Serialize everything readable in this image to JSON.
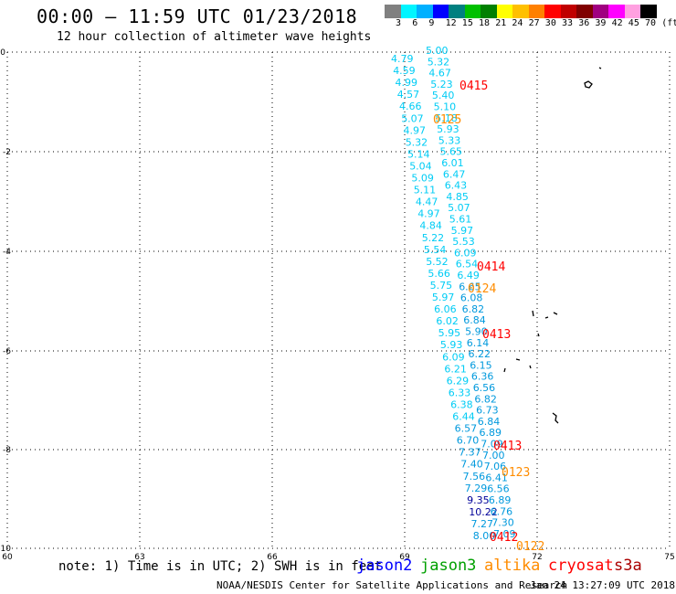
{
  "header": {
    "title": "00:00 – 11:59 UTC 01/23/2018",
    "subtitle": "12 hour collection of altimeter wave heights"
  },
  "colorbar": {
    "colors": [
      "#808080",
      "#00f5ff",
      "#00b0ff",
      "#0000ff",
      "#008080",
      "#00c000",
      "#008000",
      "#ffff00",
      "#ffc000",
      "#ff8000",
      "#ff0000",
      "#c00000",
      "#800000",
      "#a00080",
      "#ff00ff",
      "#ffa0e0",
      "#000000"
    ],
    "labels": [
      "3",
      "6",
      "9",
      "12",
      "15",
      "18",
      "21",
      "24",
      "27",
      "30",
      "33",
      "36",
      "39",
      "42",
      "45",
      "70",
      "(ft)"
    ]
  },
  "axes": {
    "x_ticks": [
      "60",
      "63",
      "66",
      "69",
      "72",
      "75"
    ],
    "y_ticks": [
      "0",
      "-2",
      "-4",
      "-6",
      "-8",
      "-10"
    ]
  },
  "track": {
    "color_light": "#00ccf5",
    "color_mid": "#0099dd",
    "color_dark": "#000099",
    "left": [
      "4.79",
      "4.59",
      "4.99",
      "4.57",
      "4.66",
      "5.07",
      "4.97",
      "5.32",
      "5.14",
      "5.04",
      "5.09",
      "5.11",
      "4.47",
      "4.97",
      "4.84",
      "5.22",
      "5.54",
      "5.52",
      "5.66",
      "5.75",
      "5.97",
      "6.06",
      "6.02",
      "5.95",
      "5.93",
      "6.09",
      "6.21",
      "6.29",
      "6.33",
      "6.38",
      "6.44",
      "6.57",
      "6.70",
      "7.37",
      "7.40",
      "7.56",
      "7.29",
      "9.35",
      "10.22",
      "7.27",
      "8.00"
    ],
    "right": [
      "5.00",
      "5.32",
      "4.67",
      "5.23",
      "5.40",
      "5.10",
      "5.18",
      "5.93",
      "5.33",
      "5.65",
      "6.01",
      "6.47",
      "6.43",
      "4.85",
      "5.07",
      "5.61",
      "5.97",
      "5.53",
      "6.09",
      "6.54",
      "6.49",
      "6.65",
      "6.08",
      "6.82",
      "6.84",
      "5.90",
      "6.14",
      "6.22",
      "6.15",
      "6.36",
      "6.56",
      "6.82",
      "6.73",
      "6.84",
      "6.89",
      "7.09",
      "7.00",
      "7.06",
      "6.41",
      "6.56",
      "6.89",
      "6.76",
      "7.30",
      "7.09"
    ]
  },
  "time_labels": [
    {
      "text": "0415",
      "color": "#ff0000"
    },
    {
      "text": "0125",
      "color": "#ff8c00"
    },
    {
      "text": "0414",
      "color": "#ff0000"
    },
    {
      "text": "0124",
      "color": "#ff8c00"
    },
    {
      "text": "0413",
      "color": "#ff0000"
    },
    {
      "text": "0413",
      "color": "#ff0000"
    },
    {
      "text": "0123",
      "color": "#ff8c00"
    },
    {
      "text": "0412",
      "color": "#ff0000"
    },
    {
      "text": "0122",
      "color": "#ff8c00"
    }
  ],
  "footer": {
    "note": "note: 1) Time is in UTC; 2) SWH is in feet",
    "legend": [
      {
        "label": "jason2",
        "color": "#0000ff"
      },
      {
        "label": "jason3",
        "color": "#00a000"
      },
      {
        "label": "altika",
        "color": "#ff8c00"
      },
      {
        "label": "cryosat",
        "color": "#ff0000"
      },
      {
        "label": "s3a",
        "color": "#aa0000"
      }
    ],
    "credit": "NOAA/NESDIS Center for Satellite Applications and Research",
    "timestamp": "Jan 24 13:27:09 UTC 2018"
  }
}
